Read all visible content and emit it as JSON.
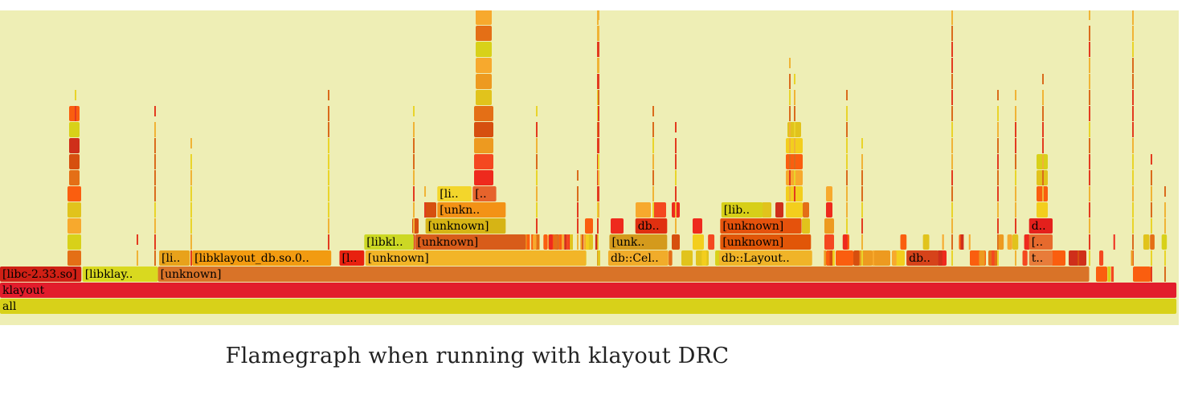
{
  "caption": "Flamegraph when running with klayout DRC",
  "colors": {
    "background": "#eeeeb5",
    "palette": [
      "#d64f0f",
      "#f7a92d",
      "#e1c31c",
      "#ee2a1d",
      "#fa5e0f",
      "#e46f16",
      "#d8d119",
      "#ed9a20",
      "#f44820",
      "#cf2f1a",
      "#f3ce1d"
    ],
    "stem": [
      "#e33b1f",
      "#f0b336",
      "#da6b1c",
      "#e9d42a"
    ]
  },
  "chart_data": {
    "type": "flamegraph",
    "title": "",
    "x_unit": "fraction of samples",
    "depth_axis": "stack depth (0 = root)",
    "frames": [
      {
        "label": "all",
        "depth": 0,
        "start": 0.0,
        "width": 0.998,
        "color": "#d8d119"
      },
      {
        "label": "klayout",
        "depth": 1,
        "start": 0.0,
        "width": 0.998,
        "color": "#e21d2c"
      },
      {
        "label": "[libc-2.33.so]",
        "depth": 2,
        "start": 0.0,
        "width": 0.069,
        "color": "#cf2015"
      },
      {
        "label": "[libklay..",
        "depth": 2,
        "start": 0.07,
        "width": 0.064,
        "color": "#d9d91f"
      },
      {
        "label": "[unknown]",
        "depth": 2,
        "start": 0.134,
        "width": 0.79,
        "color": "#d97328"
      },
      {
        "label": "[li..",
        "depth": 3,
        "start": 0.135,
        "width": 0.026,
        "color": "#e8a21b"
      },
      {
        "label": "[libklayout_db.so.0..",
        "depth": 3,
        "start": 0.163,
        "width": 0.118,
        "color": "#f29b11"
      },
      {
        "label": "[l..",
        "depth": 3,
        "start": 0.288,
        "width": 0.021,
        "color": "#e8210f"
      },
      {
        "label": "[unknown]",
        "depth": 3,
        "start": 0.31,
        "width": 0.187,
        "color": "#f2b528"
      },
      {
        "label": "db::Cel..",
        "depth": 3,
        "start": 0.516,
        "width": 0.051,
        "color": "#f1ac2a"
      },
      {
        "label": "db::Layout..",
        "depth": 3,
        "start": 0.61,
        "width": 0.079,
        "color": "#f0b428"
      },
      {
        "label": "db..",
        "depth": 3,
        "start": 0.769,
        "width": 0.027,
        "color": "#d6431a"
      },
      {
        "label": "t..",
        "depth": 3,
        "start": 0.873,
        "width": 0.02,
        "color": "#e87c3a"
      },
      {
        "label": "[libkl..",
        "depth": 4,
        "start": 0.309,
        "width": 0.042,
        "color": "#ccd824"
      },
      {
        "label": "[unknown]",
        "depth": 4,
        "start": 0.352,
        "width": 0.094,
        "color": "#d85c1a"
      },
      {
        "label": "[unk..",
        "depth": 4,
        "start": 0.517,
        "width": 0.049,
        "color": "#d49a1c"
      },
      {
        "label": "[unknown]",
        "depth": 4,
        "start": 0.611,
        "width": 0.077,
        "color": "#e15608"
      },
      {
        "label": "[..",
        "depth": 4,
        "start": 0.873,
        "width": 0.02,
        "color": "#e66a2d"
      },
      {
        "label": "[unknown]",
        "depth": 5,
        "start": 0.361,
        "width": 0.068,
        "color": "#d6b415"
      },
      {
        "label": "db..",
        "depth": 5,
        "start": 0.539,
        "width": 0.027,
        "color": "#e03010"
      },
      {
        "label": "[unknown]",
        "depth": 5,
        "start": 0.611,
        "width": 0.069,
        "color": "#e5520c"
      },
      {
        "label": "d..",
        "depth": 5,
        "start": 0.873,
        "width": 0.02,
        "color": "#e4201c"
      },
      {
        "label": "[unkn..",
        "depth": 6,
        "start": 0.371,
        "width": 0.058,
        "color": "#f39216"
      },
      {
        "label": "[lib..",
        "depth": 6,
        "start": 0.612,
        "width": 0.035,
        "color": "#d7cf18"
      },
      {
        "label": "[li..",
        "depth": 7,
        "start": 0.371,
        "width": 0.029,
        "color": "#f3d62b"
      },
      {
        "label": "[..",
        "depth": 7,
        "start": 0.401,
        "width": 0.02,
        "color": "#e6632c"
      }
    ]
  }
}
